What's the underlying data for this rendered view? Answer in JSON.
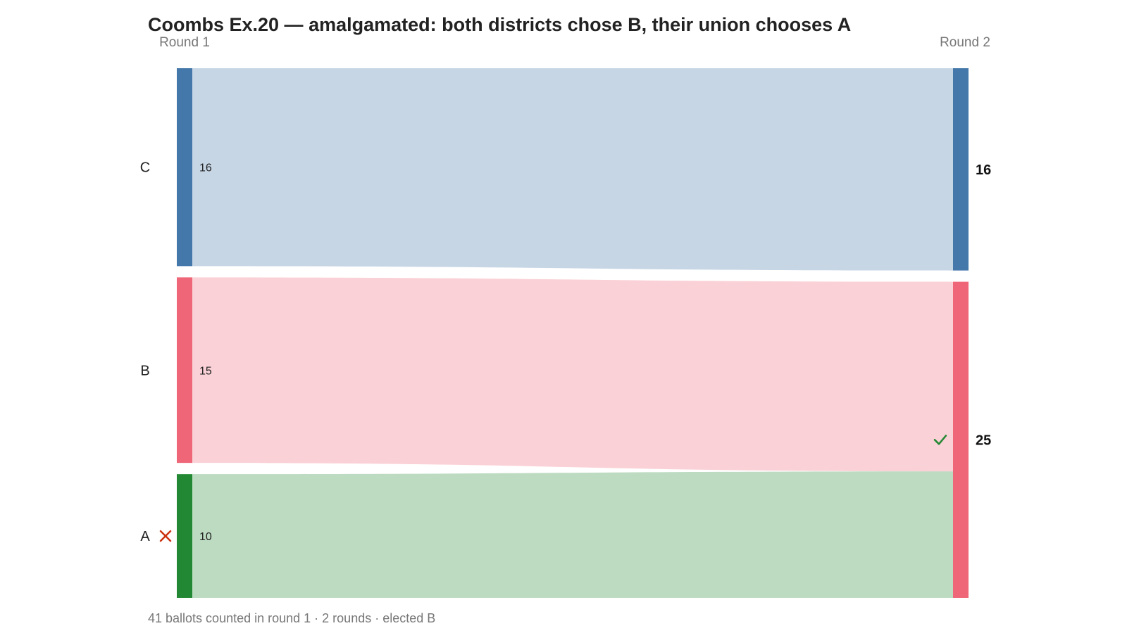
{
  "chart_data": {
    "type": "sankey",
    "title": "Coombs Ex.20 — amalgamated: both districts chose B, their union chooses A",
    "rounds": [
      "Round 1",
      "Round 2"
    ],
    "colors": {
      "C": "#4477aa",
      "B": "#ee6677",
      "A": "#228833",
      "eliminated_mark": "#cc3311",
      "elected_mark": "#228833"
    },
    "round1": [
      {
        "candidate": "C",
        "votes": 16,
        "eliminated": false
      },
      {
        "candidate": "B",
        "votes": 15,
        "eliminated": false
      },
      {
        "candidate": "A",
        "votes": 10,
        "eliminated": true
      }
    ],
    "round2": [
      {
        "candidate": "C",
        "votes": 16,
        "elected": false
      },
      {
        "candidate": "B",
        "votes": 25,
        "elected": true
      }
    ],
    "flows": [
      {
        "from": "C",
        "to": "C",
        "votes": 16
      },
      {
        "from": "B",
        "to": "B",
        "votes": 15
      },
      {
        "from": "A",
        "to": "B",
        "votes": 10
      }
    ],
    "icons": {
      "eliminated": "x-mark-icon",
      "elected": "checkmark-icon"
    },
    "footer": "41 ballots counted in round 1 · 2 rounds · elected B"
  }
}
